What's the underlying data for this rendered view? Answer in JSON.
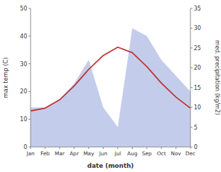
{
  "chart_data": {
    "type": "line",
    "categories": [
      "Jan",
      "Feb",
      "Mar",
      "Apr",
      "May",
      "Jun",
      "Jul",
      "Aug",
      "Sep",
      "Oct",
      "Nov",
      "Dec"
    ],
    "xlabel": "date (month)",
    "ylabel": "max temp (C)",
    "y2label": "med. precipitation (kg/m2)",
    "series": [
      {
        "type": "area",
        "axis": "y2",
        "color": "#b8c4e8",
        "values": [
          10,
          10,
          12,
          16,
          22,
          10,
          5,
          30,
          28,
          22,
          18,
          14
        ]
      },
      {
        "type": "line",
        "color": "#c03030",
        "values": [
          13,
          14,
          17,
          22,
          28,
          33,
          36,
          34,
          29,
          23,
          18,
          14
        ]
      }
    ],
    "ylim": [
      0,
      50
    ],
    "yticks": [
      0,
      10,
      20,
      30,
      40,
      50
    ],
    "y2lim": [
      0,
      35
    ],
    "y2ticks": [
      0,
      5,
      10,
      15,
      20,
      25,
      30,
      35
    ],
    "grid": false
  }
}
